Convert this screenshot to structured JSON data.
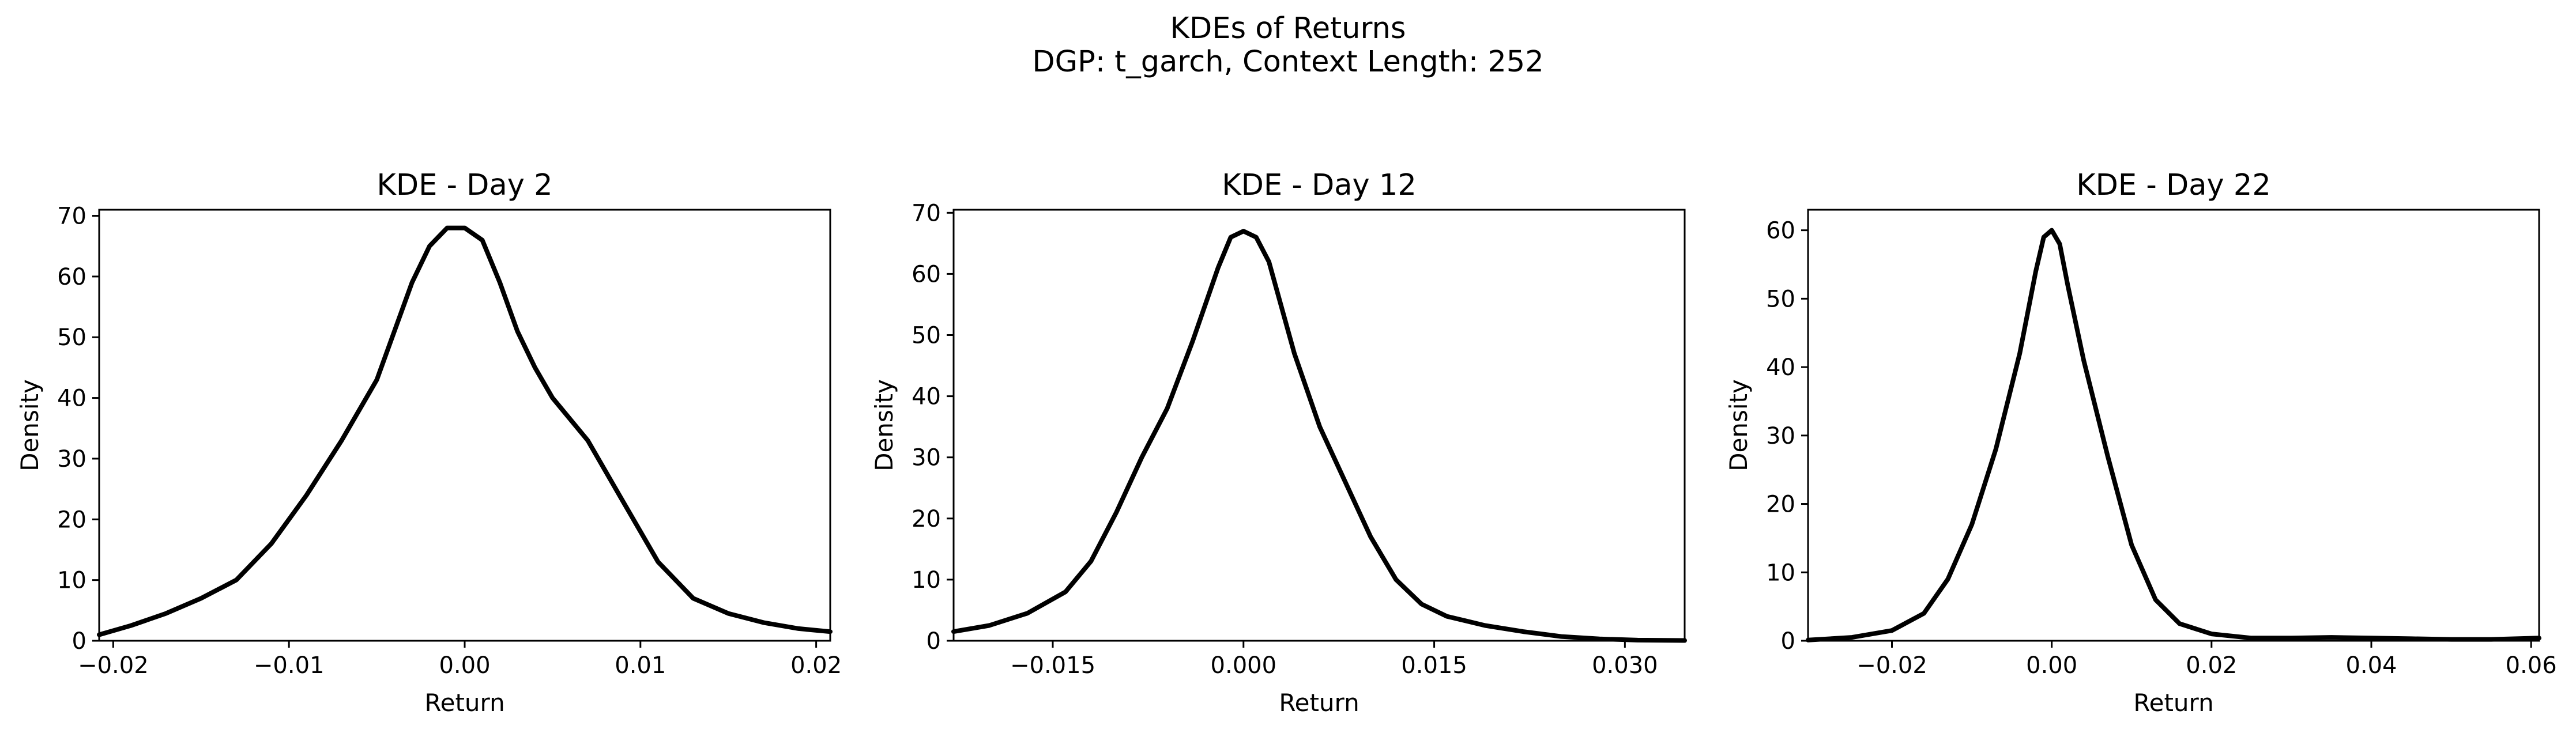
{
  "figure": {
    "title_line1": "KDEs of Returns",
    "title_line2": "DGP: t_garch, Context Length: 252"
  },
  "chart_data": [
    {
      "type": "line",
      "title": "KDE - Day 2",
      "xlabel": "Return",
      "ylabel": "Density",
      "xlim": [
        -0.0208,
        0.0208
      ],
      "ylim": [
        0,
        71
      ],
      "xticks": [
        -0.02,
        -0.01,
        0.0,
        0.01,
        0.02
      ],
      "xtick_labels": [
        "−0.02",
        "−0.01",
        "0.00",
        "0.01",
        "0.02"
      ],
      "yticks": [
        0,
        10,
        20,
        30,
        40,
        50,
        60,
        70
      ],
      "ytick_labels": [
        "0",
        "10",
        "20",
        "30",
        "40",
        "50",
        "60",
        "70"
      ],
      "grid": false,
      "legend": "none",
      "series": [
        {
          "color": "#000000",
          "x": [
            -0.0208,
            -0.019,
            -0.017,
            -0.015,
            -0.013,
            -0.011,
            -0.009,
            -0.007,
            -0.005,
            -0.004,
            -0.003,
            -0.002,
            -0.001,
            0.0,
            0.001,
            0.002,
            0.003,
            0.004,
            0.005,
            0.007,
            0.009,
            0.011,
            0.013,
            0.015,
            0.017,
            0.019,
            0.0208
          ],
          "y": [
            1,
            2.5,
            4.5,
            7,
            10,
            16,
            24,
            33,
            43,
            51,
            59,
            65,
            68,
            68,
            66,
            59,
            51,
            45,
            40,
            33,
            23,
            13,
            7,
            4.5,
            3,
            2,
            1.5
          ]
        }
      ]
    },
    {
      "type": "line",
      "title": "KDE - Day 12",
      "xlabel": "Return",
      "ylabel": "Density",
      "xlim": [
        -0.0228,
        0.0347
      ],
      "ylim": [
        0,
        70.5
      ],
      "xticks": [
        -0.015,
        0.0,
        0.015,
        0.03
      ],
      "xtick_labels": [
        "−0.015",
        "0.000",
        "0.015",
        "0.030"
      ],
      "yticks": [
        0,
        10,
        20,
        30,
        40,
        50,
        60,
        70
      ],
      "ytick_labels": [
        "0",
        "10",
        "20",
        "30",
        "40",
        "50",
        "60",
        "70"
      ],
      "grid": false,
      "legend": "none",
      "series": [
        {
          "color": "#000000",
          "x": [
            -0.0228,
            -0.02,
            -0.017,
            -0.014,
            -0.012,
            -0.01,
            -0.008,
            -0.006,
            -0.004,
            -0.002,
            -0.001,
            0.0,
            0.001,
            0.002,
            0.004,
            0.006,
            0.008,
            0.01,
            0.012,
            0.014,
            0.016,
            0.019,
            0.022,
            0.025,
            0.028,
            0.031,
            0.0347
          ],
          "y": [
            1.5,
            2.5,
            4.5,
            8,
            13,
            21,
            30,
            38,
            49,
            61,
            66,
            67,
            66,
            62,
            47,
            35,
            26,
            17,
            10,
            6,
            4,
            2.5,
            1.5,
            0.7,
            0.3,
            0.1,
            0.05
          ]
        }
      ]
    },
    {
      "type": "line",
      "title": "KDE - Day 22",
      "xlabel": "Return",
      "ylabel": "Density",
      "xlim": [
        -0.0305,
        0.061
      ],
      "ylim": [
        0,
        63
      ],
      "xticks": [
        -0.02,
        0.0,
        0.02,
        0.04,
        0.06
      ],
      "xtick_labels": [
        "−0.02",
        "0.00",
        "0.02",
        "0.04",
        "0.06"
      ],
      "yticks": [
        0,
        10,
        20,
        30,
        40,
        50,
        60
      ],
      "ytick_labels": [
        "0",
        "10",
        "20",
        "30",
        "40",
        "50",
        "60"
      ],
      "grid": false,
      "legend": "none",
      "series": [
        {
          "color": "#000000",
          "x": [
            -0.0305,
            -0.025,
            -0.02,
            -0.016,
            -0.013,
            -0.01,
            -0.007,
            -0.004,
            -0.002,
            -0.001,
            0.0,
            0.001,
            0.002,
            0.004,
            0.007,
            0.01,
            0.013,
            0.016,
            0.02,
            0.025,
            0.03,
            0.035,
            0.04,
            0.045,
            0.05,
            0.055,
            0.061
          ],
          "y": [
            0.1,
            0.5,
            1.5,
            4,
            9,
            17,
            28,
            42,
            54,
            59,
            60,
            58,
            52,
            41,
            27,
            14,
            6,
            2.5,
            1,
            0.4,
            0.4,
            0.5,
            0.4,
            0.3,
            0.2,
            0.2,
            0.4
          ]
        }
      ]
    }
  ]
}
